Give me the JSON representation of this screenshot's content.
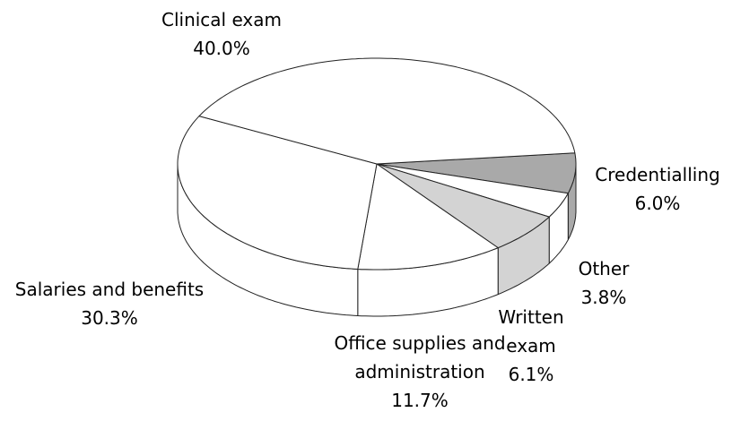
{
  "chart_data": {
    "type": "pie3d",
    "categories": [
      "Credentialling",
      "Other",
      "Written exam",
      "Office supplies and administration",
      "Salaries and benefits",
      "Clinical exam"
    ],
    "values": [
      6.0,
      3.8,
      6.1,
      11.7,
      30.3,
      40.0
    ],
    "value_labels": [
      "6.0%",
      "3.8%",
      "6.1%",
      "11.7%",
      "30.3%",
      "40.0%"
    ],
    "colors": [
      "#a9a9a9",
      "#ffffff",
      "#d3d3d3",
      "#ffffff",
      "#ffffff",
      "#ffffff"
    ]
  }
}
